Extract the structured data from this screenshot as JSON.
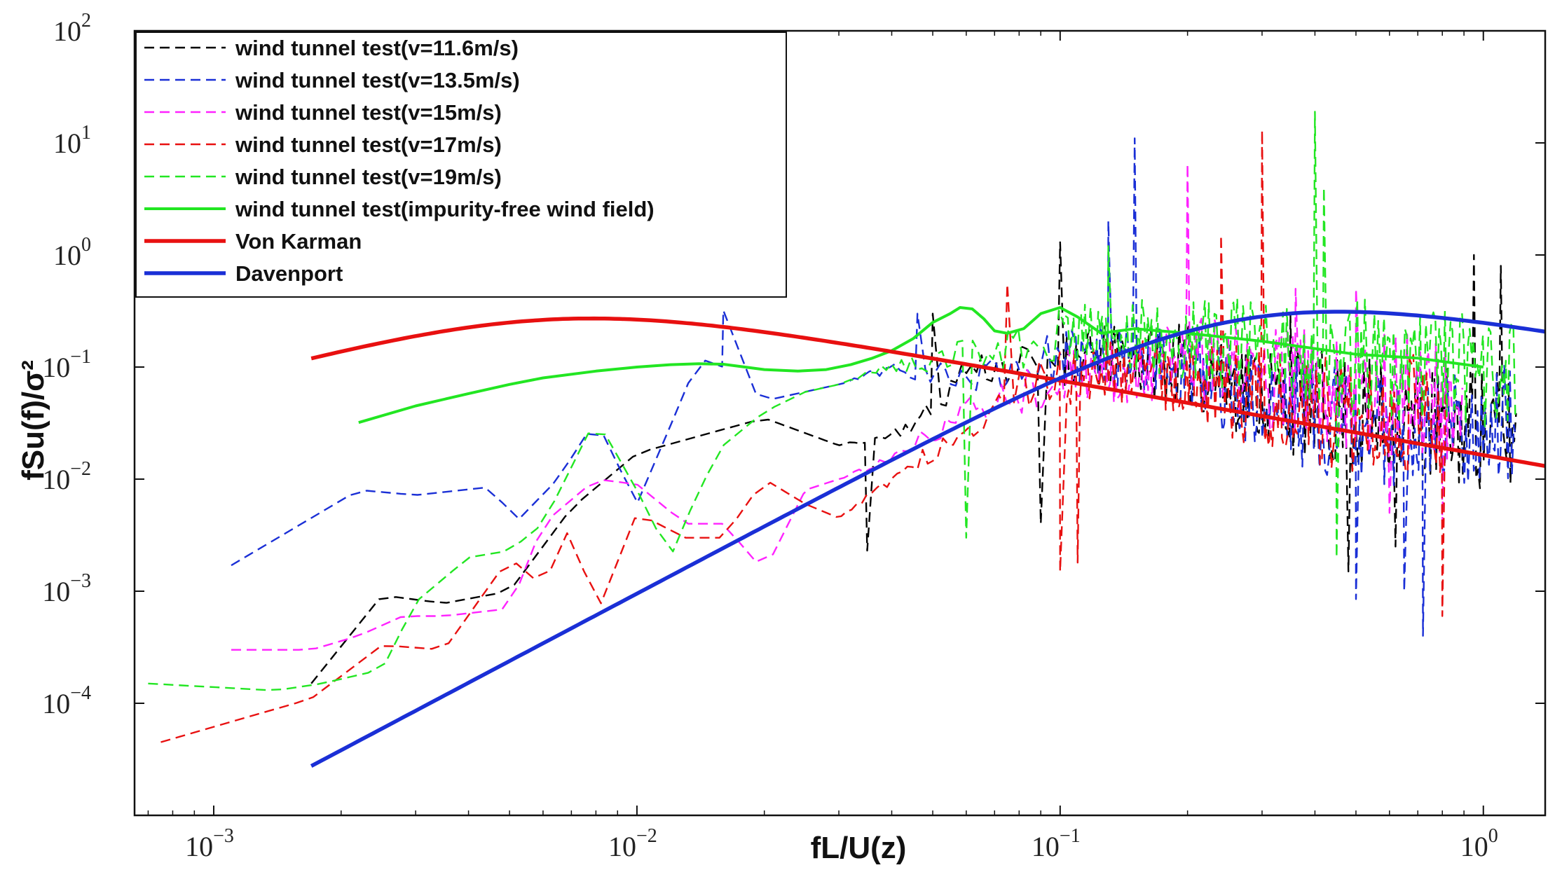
{
  "chart_data": {
    "type": "line",
    "title": "",
    "xlabel": "fL/U(z)",
    "ylabel": "fSu(f)/σ²",
    "xscale": "log",
    "yscale": "log",
    "xlim": [
      0.00065,
      1.4
    ],
    "ylim": [
      1e-05,
      100
    ],
    "x_ticks": [
      {
        "value": 0.001,
        "mantissa": "10",
        "exp": "−3"
      },
      {
        "value": 0.01,
        "mantissa": "10",
        "exp": "−2"
      },
      {
        "value": 0.1,
        "mantissa": "10",
        "exp": "−1"
      },
      {
        "value": 1,
        "mantissa": "10",
        "exp": "0"
      }
    ],
    "y_ticks": [
      {
        "value": 0.0001,
        "mantissa": "10",
        "exp": "−4"
      },
      {
        "value": 0.001,
        "mantissa": "10",
        "exp": "−3"
      },
      {
        "value": 0.01,
        "mantissa": "10",
        "exp": "−2"
      },
      {
        "value": 0.1,
        "mantissa": "10",
        "exp": "−1"
      },
      {
        "value": 1,
        "mantissa": "10",
        "exp": "0"
      },
      {
        "value": 10,
        "mantissa": "10",
        "exp": "1"
      },
      {
        "value": 100,
        "mantissa": "10",
        "exp": "2"
      }
    ],
    "legend_position": "top-left",
    "series": [
      {
        "name": "wind tunnel test(v=11.6m/s)",
        "color": "#000000",
        "style": "dashed",
        "seed": 11,
        "points": [
          [
            0.0017,
            0.00015
          ],
          [
            0.0025,
            0.00092
          ],
          [
            0.0035,
            0.00078
          ],
          [
            0.005,
            0.001
          ],
          [
            0.007,
            0.0055
          ],
          [
            0.01,
            0.017
          ],
          [
            0.015,
            0.026
          ],
          [
            0.02,
            0.035
          ],
          [
            0.03,
            0.02
          ],
          [
            0.04,
            0.025
          ],
          [
            0.05,
            0.04
          ],
          [
            0.06,
            0.1
          ],
          [
            0.08,
            0.1
          ],
          [
            0.1,
            0.12
          ],
          [
            0.15,
            0.12
          ],
          [
            0.2,
            0.1
          ],
          [
            0.3,
            0.06
          ],
          [
            0.5,
            0.035
          ],
          [
            0.8,
            0.03
          ],
          [
            1.0,
            0.028
          ],
          [
            1.2,
            0.025
          ]
        ],
        "spikes": [
          [
            0.05,
            0.3
          ],
          [
            0.1,
            1.3
          ],
          [
            0.35,
            0.3
          ],
          [
            0.95,
            1.0
          ],
          [
            1.1,
            0.8
          ]
        ],
        "dips": [
          [
            0.035,
            0.0023
          ],
          [
            0.09,
            0.004
          ],
          [
            0.48,
            0.0015
          ],
          [
            0.62,
            0.0025
          ]
        ]
      },
      {
        "name": "wind tunnel test(v=13.5m/s)",
        "color": "#1a2fd6",
        "style": "dashed",
        "seed": 23,
        "points": [
          [
            0.0011,
            0.0017
          ],
          [
            0.0022,
            0.008
          ],
          [
            0.003,
            0.0072
          ],
          [
            0.0045,
            0.0085
          ],
          [
            0.0052,
            0.0042
          ],
          [
            0.0065,
            0.01
          ],
          [
            0.008,
            0.034
          ],
          [
            0.01,
            0.006
          ],
          [
            0.012,
            0.03
          ],
          [
            0.014,
            0.12
          ],
          [
            0.016,
            0.1
          ],
          [
            0.02,
            0.05
          ],
          [
            0.03,
            0.07
          ],
          [
            0.04,
            0.1
          ],
          [
            0.06,
            0.08
          ],
          [
            0.08,
            0.1
          ],
          [
            0.1,
            0.12
          ],
          [
            0.15,
            0.14
          ],
          [
            0.2,
            0.09
          ],
          [
            0.3,
            0.05
          ],
          [
            0.5,
            0.03
          ],
          [
            0.8,
            0.03
          ],
          [
            1.0,
            0.03
          ],
          [
            1.2,
            0.03
          ]
        ],
        "spikes": [
          [
            0.016,
            0.32
          ],
          [
            0.046,
            0.3
          ],
          [
            0.15,
            11
          ],
          [
            0.13,
            2.0
          ]
        ],
        "dips": [
          [
            0.5,
            0.00085
          ],
          [
            0.72,
            0.0004
          ],
          [
            0.65,
            0.001
          ]
        ]
      },
      {
        "name": "wind tunnel test(v=15m/s)",
        "color": "#ff22ff",
        "style": "dashed",
        "seed": 37,
        "points": [
          [
            0.0011,
            0.0003
          ],
          [
            0.0017,
            0.0003
          ],
          [
            0.0022,
            0.0004
          ],
          [
            0.0028,
            0.0006
          ],
          [
            0.0035,
            0.0006
          ],
          [
            0.005,
            0.0007
          ],
          [
            0.006,
            0.004
          ],
          [
            0.008,
            0.01
          ],
          [
            0.01,
            0.009
          ],
          [
            0.013,
            0.004
          ],
          [
            0.016,
            0.004
          ],
          [
            0.02,
            0.0015
          ],
          [
            0.025,
            0.008
          ],
          [
            0.03,
            0.01
          ],
          [
            0.04,
            0.015
          ],
          [
            0.06,
            0.04
          ],
          [
            0.08,
            0.06
          ],
          [
            0.1,
            0.08
          ],
          [
            0.15,
            0.1
          ],
          [
            0.2,
            0.12
          ],
          [
            0.3,
            0.08
          ],
          [
            0.5,
            0.06
          ],
          [
            0.7,
            0.06
          ],
          [
            0.9,
            0.05
          ]
        ],
        "spikes": [
          [
            0.2,
            6.5
          ],
          [
            0.36,
            0.5
          ],
          [
            0.5,
            0.5
          ]
        ],
        "dips": [
          [
            0.6,
            0.005
          ],
          [
            0.8,
            0.004
          ]
        ]
      },
      {
        "name": "wind tunnel test(v=17m/s)",
        "color": "#e81010",
        "style": "dashed",
        "seed": 51,
        "points": [
          [
            0.00075,
            4.5e-05
          ],
          [
            0.0017,
            0.00011
          ],
          [
            0.0025,
            0.00033
          ],
          [
            0.0035,
            0.0003
          ],
          [
            0.005,
            0.002
          ],
          [
            0.006,
            0.0011
          ],
          [
            0.007,
            0.004
          ],
          [
            0.008,
            0.0006
          ],
          [
            0.01,
            0.005
          ],
          [
            0.013,
            0.003
          ],
          [
            0.016,
            0.003
          ],
          [
            0.02,
            0.01
          ],
          [
            0.025,
            0.006
          ],
          [
            0.03,
            0.0045
          ],
          [
            0.04,
            0.01
          ],
          [
            0.06,
            0.03
          ],
          [
            0.08,
            0.06
          ],
          [
            0.1,
            0.08
          ],
          [
            0.15,
            0.1
          ],
          [
            0.2,
            0.08
          ],
          [
            0.3,
            0.05
          ],
          [
            0.5,
            0.04
          ],
          [
            0.7,
            0.04
          ],
          [
            0.82,
            0.04
          ]
        ],
        "spikes": [
          [
            0.075,
            0.55
          ],
          [
            0.3,
            13
          ],
          [
            0.24,
            1.5
          ]
        ],
        "dips": [
          [
            0.1,
            0.0015
          ],
          [
            0.11,
            0.0018
          ],
          [
            0.8,
            0.0006
          ]
        ]
      },
      {
        "name": "wind tunnel test(v=19m/s)",
        "color": "#22e622",
        "style": "dashed",
        "seed": 67,
        "points": [
          [
            0.0007,
            0.00015
          ],
          [
            0.0014,
            0.00013
          ],
          [
            0.0018,
            0.00015
          ],
          [
            0.0025,
            0.0002
          ],
          [
            0.003,
            0.0008
          ],
          [
            0.004,
            0.002
          ],
          [
            0.005,
            0.0023
          ],
          [
            0.006,
            0.004
          ],
          [
            0.008,
            0.035
          ],
          [
            0.01,
            0.008
          ],
          [
            0.012,
            0.002
          ],
          [
            0.014,
            0.008
          ],
          [
            0.016,
            0.02
          ],
          [
            0.02,
            0.04
          ],
          [
            0.025,
            0.06
          ],
          [
            0.03,
            0.07
          ],
          [
            0.04,
            0.1
          ],
          [
            0.06,
            0.13
          ],
          [
            0.08,
            0.15
          ],
          [
            0.1,
            0.2
          ],
          [
            0.15,
            0.2
          ],
          [
            0.2,
            0.17
          ],
          [
            0.3,
            0.15
          ],
          [
            0.5,
            0.12
          ],
          [
            0.7,
            0.1
          ],
          [
            1.0,
            0.08
          ],
          [
            1.2,
            0.07
          ]
        ],
        "spikes": [
          [
            0.4,
            19
          ],
          [
            0.42,
            4
          ],
          [
            0.13,
            1.2
          ]
        ],
        "dips": [
          [
            0.06,
            0.003
          ],
          [
            0.45,
            0.002
          ]
        ]
      },
      {
        "name": "wind tunnel test(impurity-free wind field)",
        "color": "#22e622",
        "style": "solid",
        "width": 4,
        "points": [
          [
            0.0022,
            0.032
          ],
          [
            0.003,
            0.045
          ],
          [
            0.004,
            0.058
          ],
          [
            0.005,
            0.07
          ],
          [
            0.006,
            0.08
          ],
          [
            0.008,
            0.092
          ],
          [
            0.01,
            0.1
          ],
          [
            0.012,
            0.105
          ],
          [
            0.014,
            0.107
          ],
          [
            0.016,
            0.106
          ],
          [
            0.018,
            0.1
          ],
          [
            0.02,
            0.095
          ],
          [
            0.024,
            0.092
          ],
          [
            0.028,
            0.095
          ],
          [
            0.032,
            0.105
          ],
          [
            0.036,
            0.12
          ],
          [
            0.04,
            0.14
          ],
          [
            0.045,
            0.18
          ],
          [
            0.05,
            0.25
          ],
          [
            0.055,
            0.3
          ],
          [
            0.058,
            0.34
          ],
          [
            0.062,
            0.33
          ],
          [
            0.066,
            0.27
          ],
          [
            0.07,
            0.21
          ],
          [
            0.075,
            0.2
          ],
          [
            0.082,
            0.22
          ],
          [
            0.09,
            0.3
          ],
          [
            0.1,
            0.34
          ],
          [
            0.11,
            0.28
          ],
          [
            0.125,
            0.2
          ],
          [
            0.15,
            0.22
          ],
          [
            0.2,
            0.2
          ],
          [
            0.3,
            0.17
          ],
          [
            0.5,
            0.13
          ],
          [
            0.7,
            0.12
          ],
          [
            1.0,
            0.1
          ]
        ]
      },
      {
        "name": "Von Karman",
        "color": "#e81010",
        "style": "solid",
        "width": 5.5,
        "model": "vonkarman",
        "x_start": 0.0017,
        "x_end": 1.4
      },
      {
        "name": "Davenport",
        "color": "#1a2fd6",
        "style": "solid",
        "width": 5.5,
        "model": "davenport",
        "x_start": 0.0017,
        "x_end": 1.4
      }
    ]
  }
}
